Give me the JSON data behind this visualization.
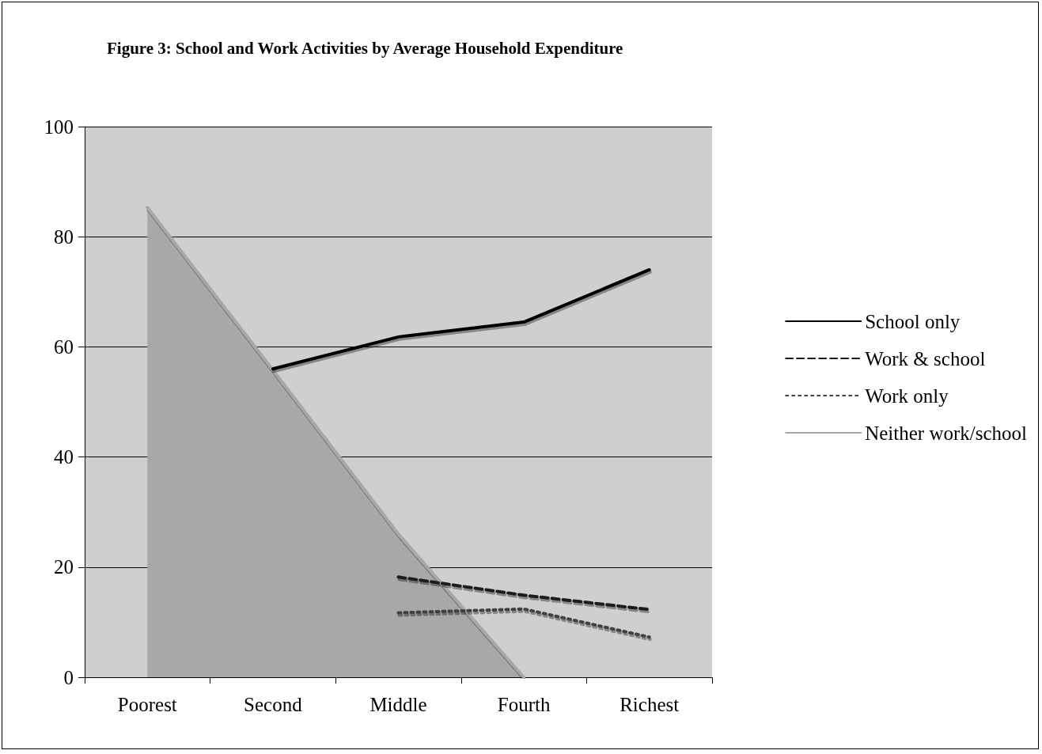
{
  "chart_data": {
    "type": "line",
    "title": "Figure 3: School and Work Activities by Average Household Expenditure",
    "categories": [
      "Poorest",
      "Second",
      "Middle",
      "Fourth",
      "Richest"
    ],
    "series": [
      {
        "name": "School only",
        "color": "#000000",
        "line_style": "solid",
        "values": [
          null,
          56,
          61.8,
          64.5,
          74
        ]
      },
      {
        "name": "Work & school",
        "color": "#1a1a1a",
        "line_style": "dashed",
        "values": [
          null,
          null,
          18.2,
          14.9,
          12.3
        ]
      },
      {
        "name": "Work only",
        "color": "#404040",
        "line_style": "dotted",
        "values": [
          null,
          null,
          11.7,
          12.4,
          7.3
        ]
      },
      {
        "name": "Neither work/school",
        "type": "area",
        "color": "#a8a8a8",
        "line_style": "solid",
        "values": [
          85.3,
          55.8,
          26,
          0,
          null
        ]
      }
    ],
    "ylim": [
      0,
      100
    ],
    "yticks": [
      0,
      20,
      40,
      60,
      80,
      100
    ],
    "grid": "y",
    "legend": "right",
    "marker": "none"
  }
}
